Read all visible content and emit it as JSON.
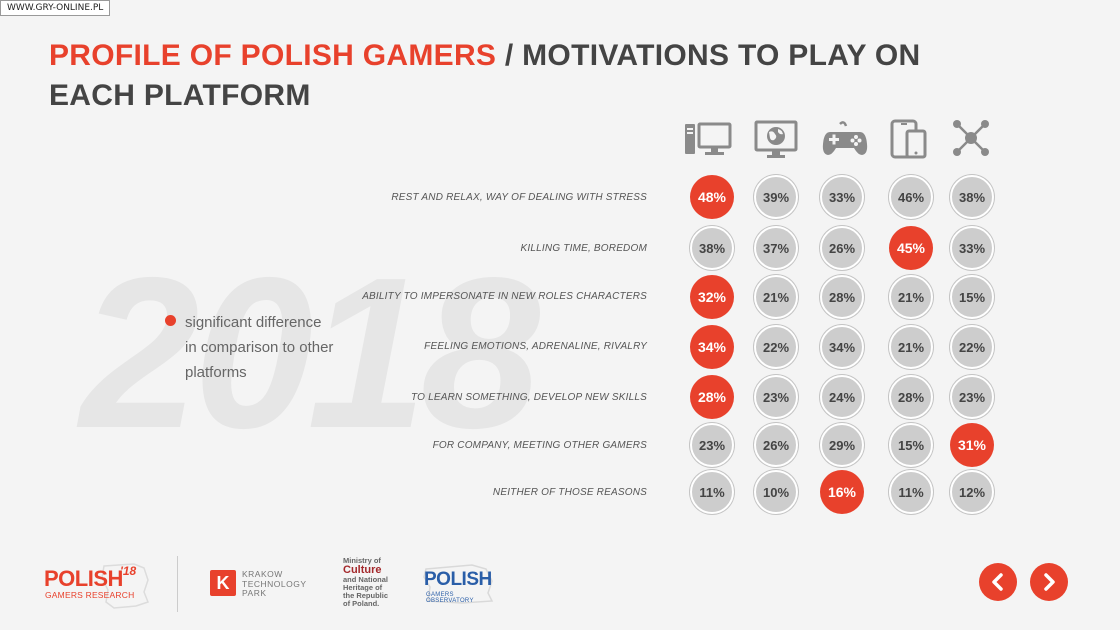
{
  "watermark": "WWW.GRY-ONLINE.PL",
  "title": {
    "accent": "PROFILE OF POLISH GAMERS",
    "rest": " / MOTIVATIONS TO PLAY ON EACH PLATFORM"
  },
  "year": "2018",
  "legend": {
    "text": "significant difference\nin comparison to other\nplatforms"
  },
  "platform_icons": [
    "desktop-pc-icon",
    "web-browser-icon",
    "gamepad-icon",
    "mobile-devices-icon",
    "social-network-icon"
  ],
  "colors": {
    "accent": "#e8412c",
    "bubble": "#cdcdcd",
    "title_dark": "#444444"
  },
  "rows": [
    {
      "label": "REST AND RELAX, WAY OF DEALING WITH STRESS",
      "values": [
        "48%",
        "39%",
        "33%",
        "46%",
        "38%"
      ],
      "significant": [
        0
      ]
    },
    {
      "label": "KILLING TIME, BOREDOM",
      "values": [
        "38%",
        "37%",
        "26%",
        "45%",
        "33%"
      ],
      "significant": [
        3
      ]
    },
    {
      "label": "ABILITY TO IMPERSONATE IN NEW ROLES CHARACTERS",
      "values": [
        "32%",
        "21%",
        "28%",
        "21%",
        "15%"
      ],
      "significant": [
        0
      ]
    },
    {
      "label": "FEELING EMOTIONS, ADRENALINE, RIVALRY",
      "values": [
        "34%",
        "22%",
        "34%",
        "21%",
        "22%"
      ],
      "significant": [
        0
      ]
    },
    {
      "label": "TO LEARN SOMETHING, DEVELOP NEW SKILLS",
      "values": [
        "28%",
        "23%",
        "24%",
        "28%",
        "23%"
      ],
      "significant": [
        0
      ]
    },
    {
      "label": "FOR COMPANY, MEETING OTHER GAMERS",
      "values": [
        "23%",
        "26%",
        "29%",
        "15%",
        "31%"
      ],
      "significant": [
        4
      ]
    },
    {
      "label": "NEITHER OF THOSE REASONS",
      "values": [
        "11%",
        "10%",
        "16%",
        "11%",
        "12%"
      ],
      "significant": [
        2
      ]
    }
  ],
  "logos": {
    "polish_gamers": {
      "main": "POLISH",
      "sup": "'18",
      "sub": "GAMERS RESEARCH"
    },
    "ktp": {
      "mark": "K",
      "text": "KRAKOW\nTECHNOLOGY\nPARK"
    },
    "ministry": {
      "line1": "Ministry of",
      "big": "Culture",
      "line3": "and National",
      "line4": "Heritage of",
      "line5": "the Republic",
      "line6": "of Poland."
    },
    "observatory": {
      "main": "POLISH",
      "sub": "GAMERS OBSERVATORY"
    }
  },
  "nav": {
    "prev_icon": "chevron-left-icon",
    "next_icon": "chevron-right-icon"
  }
}
